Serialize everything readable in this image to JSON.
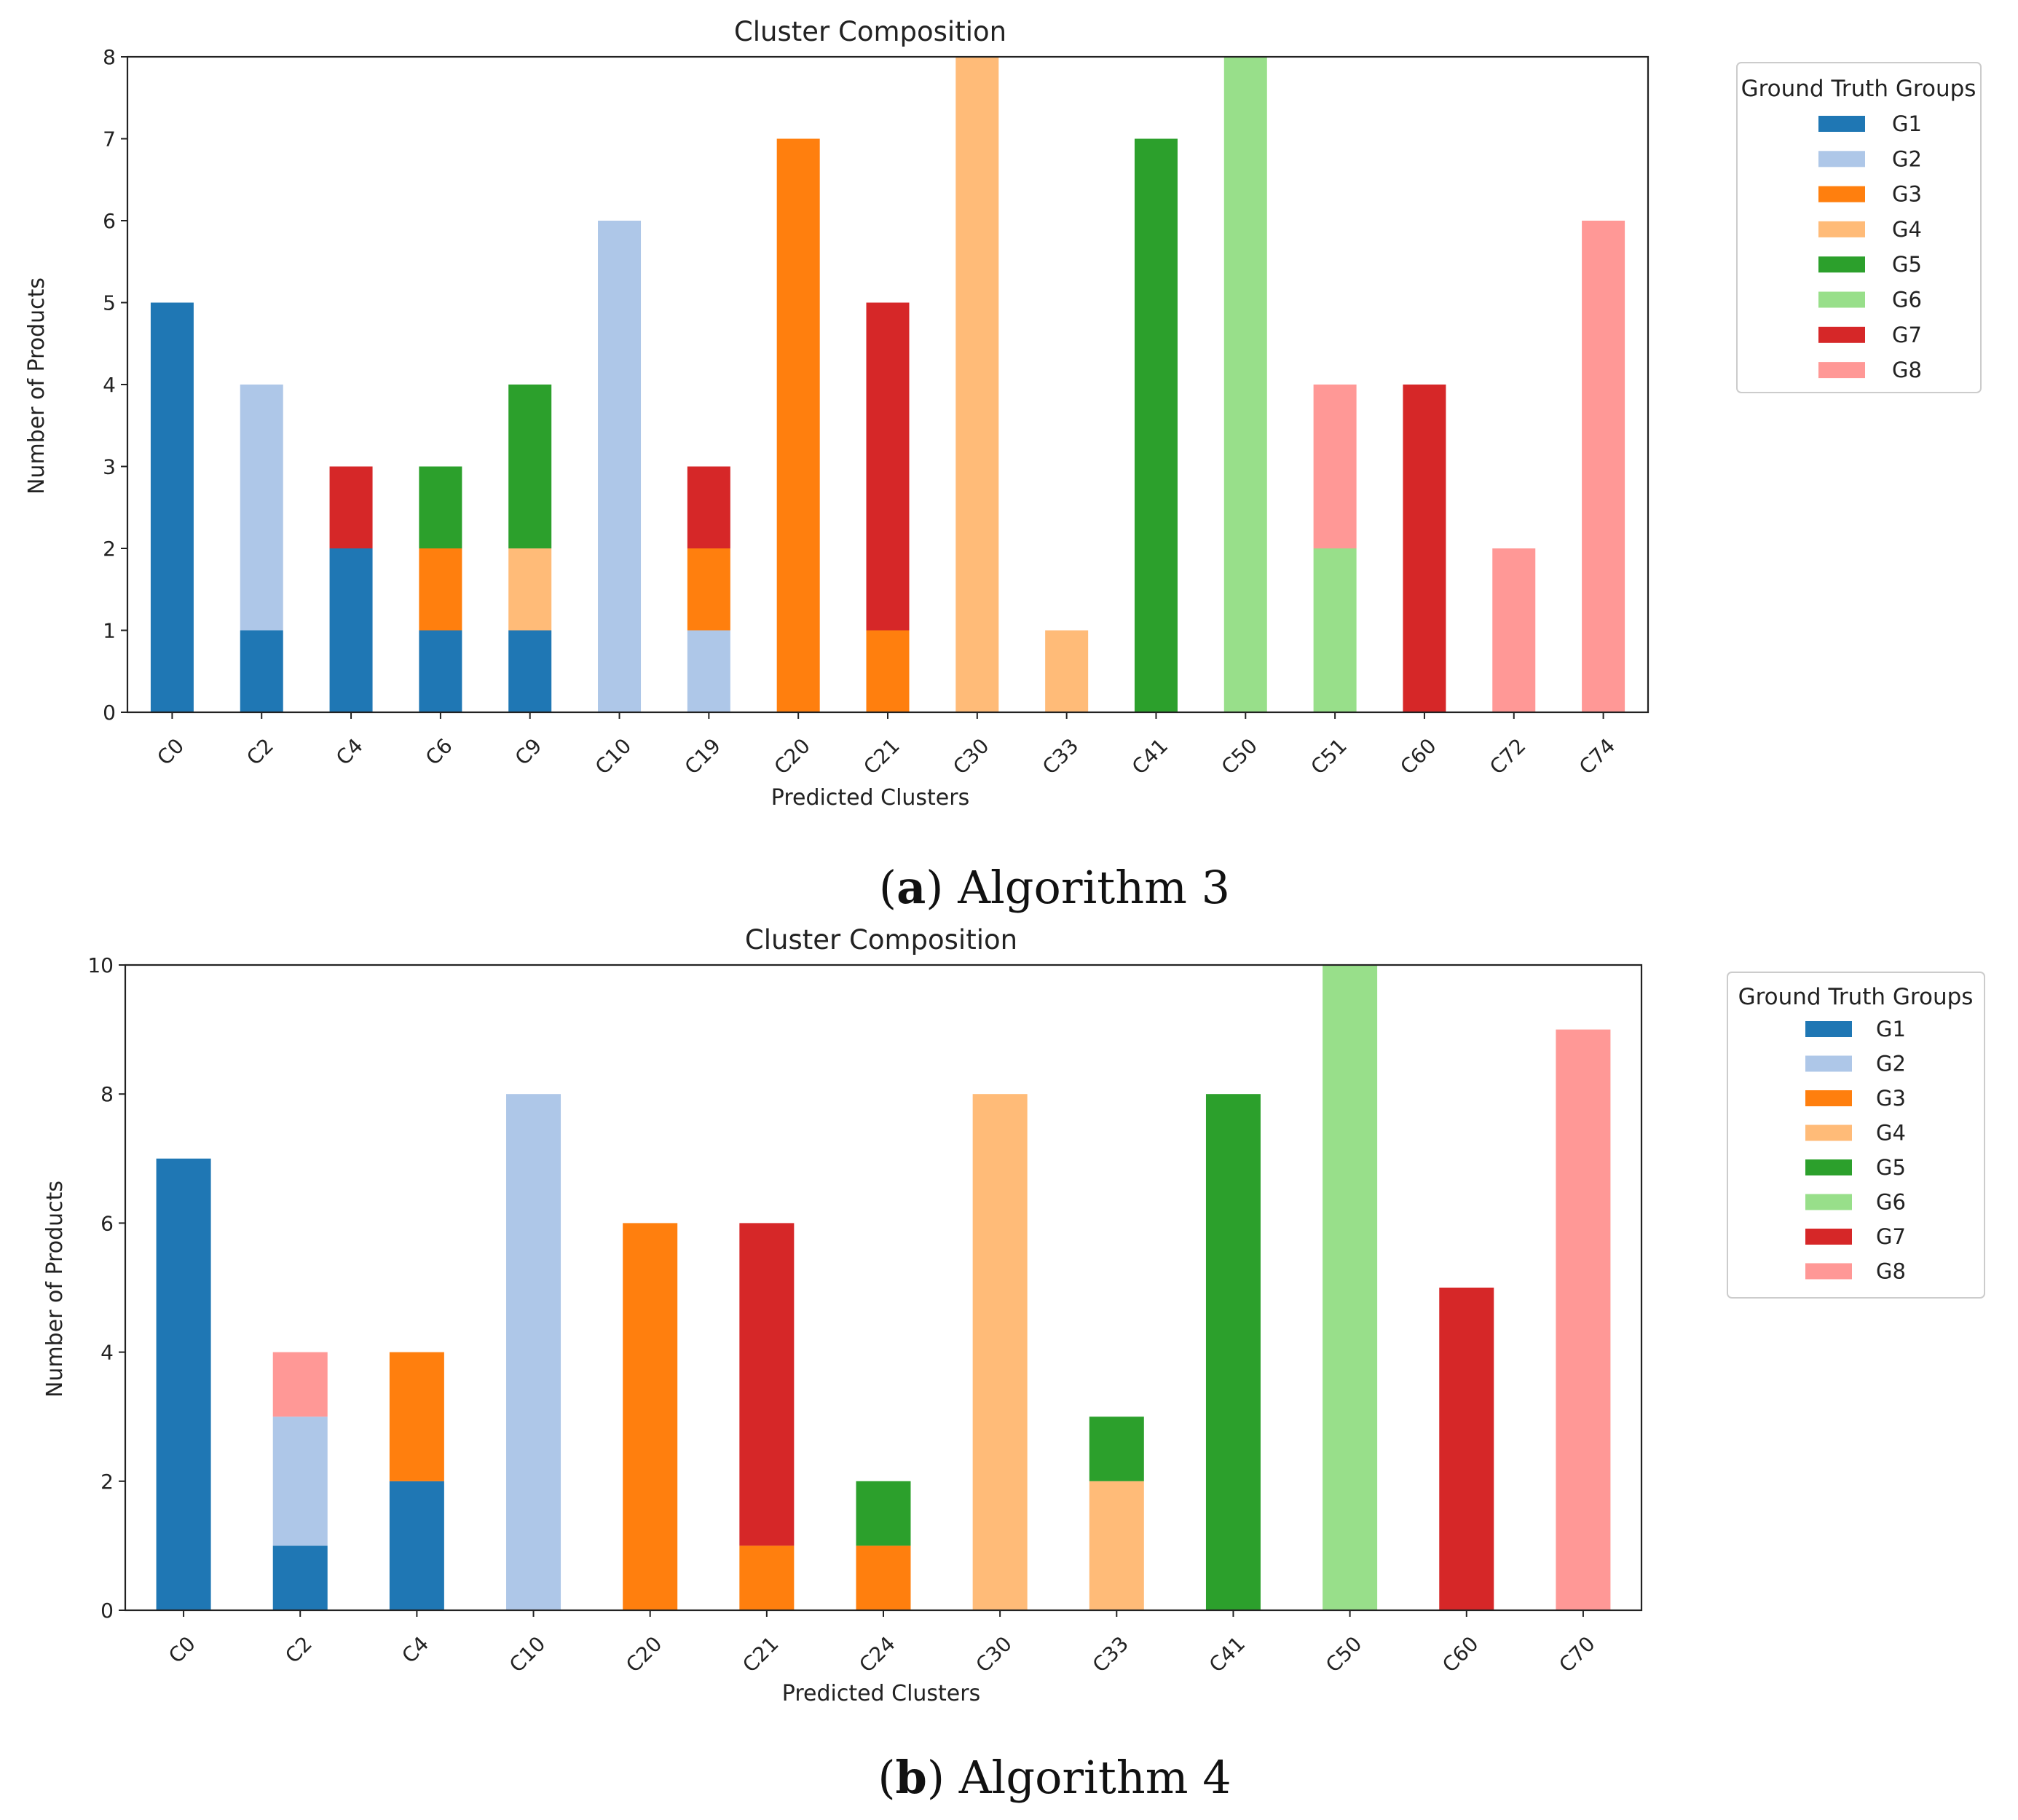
{
  "group_colors": {
    "G1": "#1f77b4",
    "G2": "#aec7e8",
    "G3": "#ff7f0e",
    "G4": "#ffbb78",
    "G5": "#2ca02c",
    "G6": "#98df8a",
    "G7": "#d62728",
    "G8": "#ff9896"
  },
  "chart_data": [
    {
      "type": "bar",
      "stacked": true,
      "title": "Cluster Composition",
      "xlabel": "Predicted Clusters",
      "ylabel": "Number of Products",
      "ylim": [
        0,
        8
      ],
      "yticks": [
        0,
        1,
        2,
        3,
        4,
        5,
        6,
        7,
        8
      ],
      "legend_title": "Ground Truth Groups",
      "legend": [
        "G1",
        "G2",
        "G3",
        "G4",
        "G5",
        "G6",
        "G7",
        "G8"
      ],
      "legend_position": "outside-right-top",
      "categories": [
        "C0",
        "C2",
        "C4",
        "C6",
        "C9",
        "C10",
        "C19",
        "C20",
        "C21",
        "C30",
        "C33",
        "C41",
        "C50",
        "C51",
        "C60",
        "C72",
        "C74"
      ],
      "series": [
        {
          "name": "G1",
          "values": [
            5,
            1,
            2,
            1,
            1,
            0,
            0,
            0,
            0,
            0,
            0,
            0,
            0,
            0,
            0,
            0,
            0
          ]
        },
        {
          "name": "G2",
          "values": [
            0,
            3,
            0,
            0,
            0,
            6,
            1,
            0,
            0,
            0,
            0,
            0,
            0,
            0,
            0,
            0,
            0
          ]
        },
        {
          "name": "G3",
          "values": [
            0,
            0,
            0,
            1,
            0,
            0,
            1,
            7,
            1,
            0,
            0,
            0,
            0,
            0,
            0,
            0,
            0
          ]
        },
        {
          "name": "G4",
          "values": [
            0,
            0,
            0,
            0,
            1,
            0,
            0,
            0,
            0,
            8,
            1,
            0,
            0,
            0,
            0,
            0,
            0
          ]
        },
        {
          "name": "G5",
          "values": [
            0,
            0,
            0,
            1,
            2,
            0,
            0,
            0,
            0,
            0,
            0,
            7,
            0,
            0,
            0,
            0,
            0
          ]
        },
        {
          "name": "G6",
          "values": [
            0,
            0,
            0,
            0,
            0,
            0,
            0,
            0,
            0,
            0,
            0,
            0,
            8,
            2,
            0,
            0,
            0
          ]
        },
        {
          "name": "G7",
          "values": [
            0,
            0,
            1,
            0,
            0,
            0,
            1,
            0,
            4,
            0,
            0,
            0,
            0,
            0,
            4,
            0,
            0
          ]
        },
        {
          "name": "G8",
          "values": [
            0,
            0,
            0,
            0,
            0,
            0,
            0,
            0,
            0,
            0,
            0,
            0,
            0,
            2,
            0,
            2,
            6
          ]
        }
      ],
      "caption_label": "a",
      "caption_text": "Algorithm 3"
    },
    {
      "type": "bar",
      "stacked": true,
      "title": "Cluster Composition",
      "xlabel": "Predicted Clusters",
      "ylabel": "Number of Products",
      "ylim": [
        0,
        10
      ],
      "yticks": [
        0,
        2,
        4,
        6,
        8,
        10
      ],
      "legend_title": "Ground Truth Groups",
      "legend": [
        "G1",
        "G2",
        "G3",
        "G4",
        "G5",
        "G6",
        "G7",
        "G8"
      ],
      "legend_position": "outside-right-top",
      "categories": [
        "C0",
        "C2",
        "C4",
        "C10",
        "C20",
        "C21",
        "C24",
        "C30",
        "C33",
        "C41",
        "C50",
        "C60",
        "C70"
      ],
      "series": [
        {
          "name": "G1",
          "values": [
            7,
            1,
            2,
            0,
            0,
            0,
            0,
            0,
            0,
            0,
            0,
            0,
            0
          ]
        },
        {
          "name": "G2",
          "values": [
            0,
            2,
            0,
            8,
            0,
            0,
            0,
            0,
            0,
            0,
            0,
            0,
            0
          ]
        },
        {
          "name": "G3",
          "values": [
            0,
            0,
            2,
            0,
            6,
            1,
            1,
            0,
            0,
            0,
            0,
            0,
            0
          ]
        },
        {
          "name": "G4",
          "values": [
            0,
            0,
            0,
            0,
            0,
            0,
            0,
            8,
            2,
            0,
            0,
            0,
            0
          ]
        },
        {
          "name": "G5",
          "values": [
            0,
            0,
            0,
            0,
            0,
            0,
            1,
            0,
            1,
            8,
            0,
            0,
            0
          ]
        },
        {
          "name": "G6",
          "values": [
            0,
            0,
            0,
            0,
            0,
            0,
            0,
            0,
            0,
            0,
            10,
            0,
            0
          ]
        },
        {
          "name": "G7",
          "values": [
            0,
            0,
            0,
            0,
            0,
            5,
            0,
            0,
            0,
            0,
            0,
            5,
            0
          ]
        },
        {
          "name": "G8",
          "values": [
            0,
            1,
            0,
            0,
            0,
            0,
            0,
            0,
            0,
            0,
            0,
            0,
            9
          ]
        }
      ],
      "caption_label": "b",
      "caption_text": "Algorithm 4"
    }
  ]
}
